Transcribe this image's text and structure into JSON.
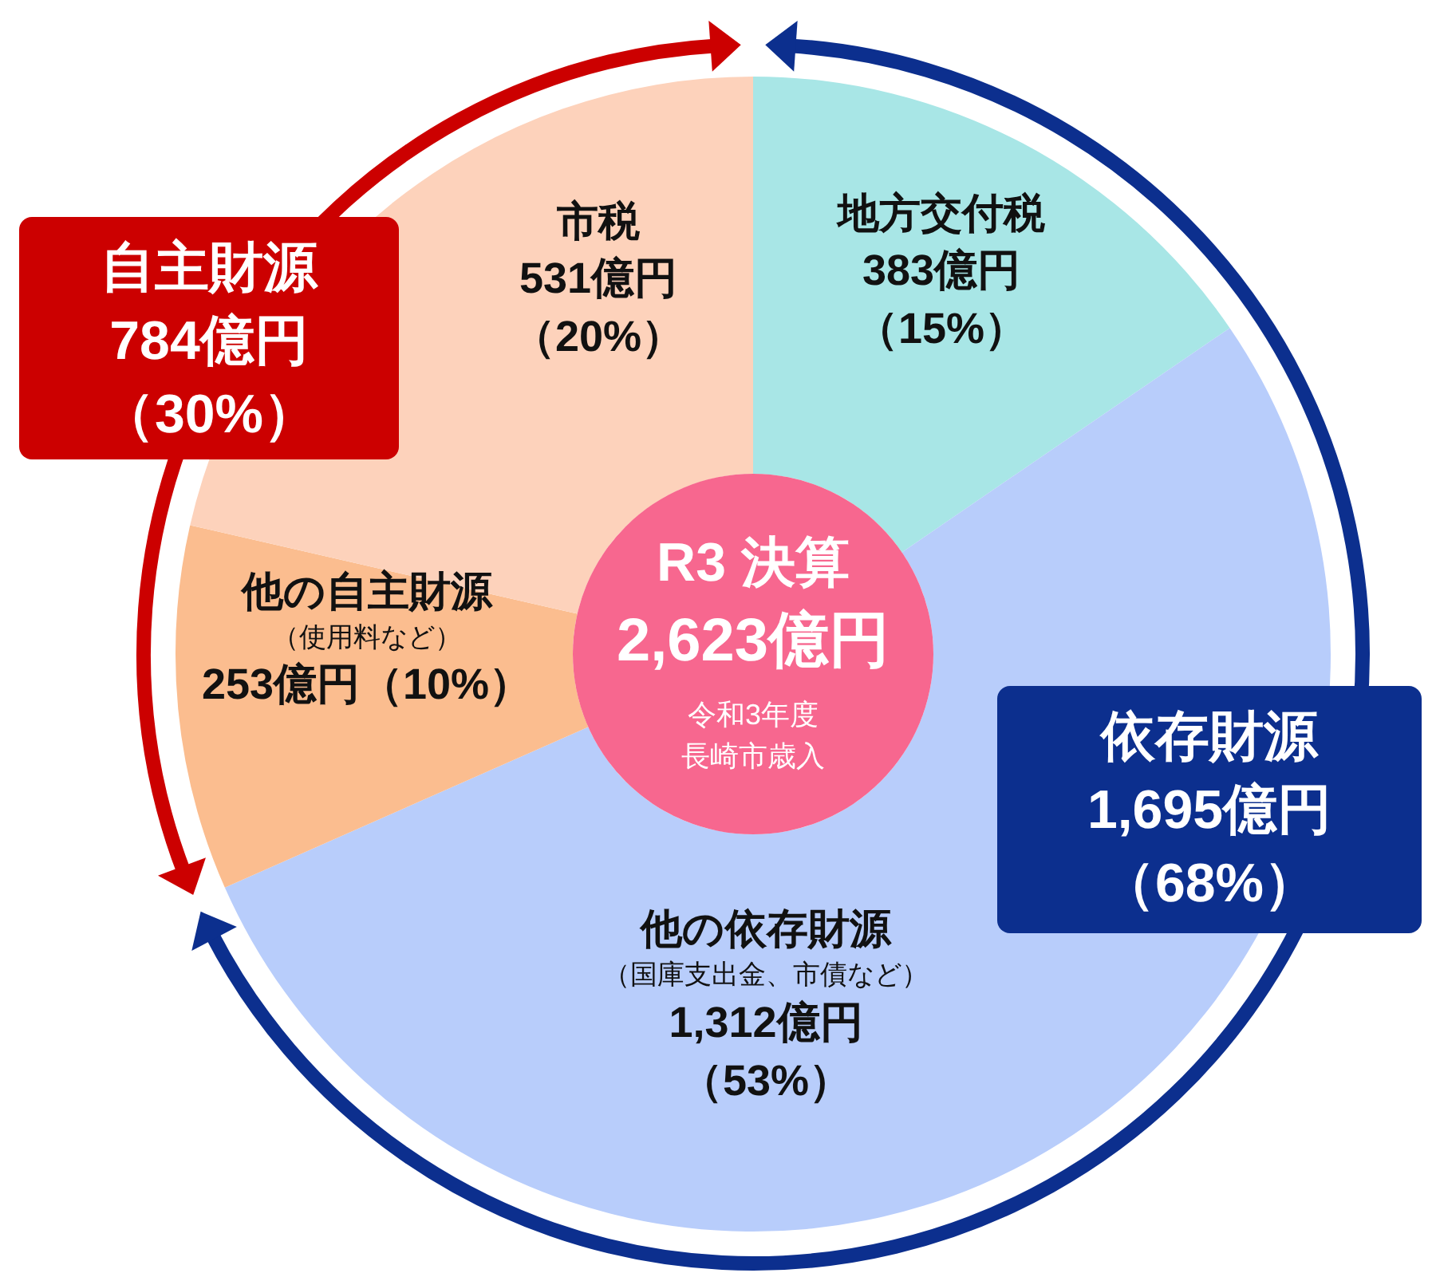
{
  "chart_data": {
    "type": "donut",
    "categories": [
      "地方交付税",
      "他の依存財源",
      "他の自主財源",
      "市税"
    ],
    "values": [
      383,
      1312,
      253,
      531
    ],
    "colors": [
      "#a8e6e6",
      "#b8cdfb",
      "#fbbd8f",
      "#fdd2bb"
    ],
    "value_labels": [
      "383億円（15%）",
      "1,312億円（53%）",
      "253億円（10%）",
      "531億円（20%）"
    ],
    "annotations": [
      "R3 決算",
      "2,623億円",
      "令和3年度",
      "長崎市歳入",
      "自主財源",
      "784億円",
      "（30%）",
      "依存財源",
      "1,695億円",
      "（68%）",
      {
        "text": "（使用料など）",
        "x": "他の自主財源"
      },
      {
        "text": "（国庫支出金、市債など）",
        "x": "他の依存財源"
      }
    ]
  }
}
